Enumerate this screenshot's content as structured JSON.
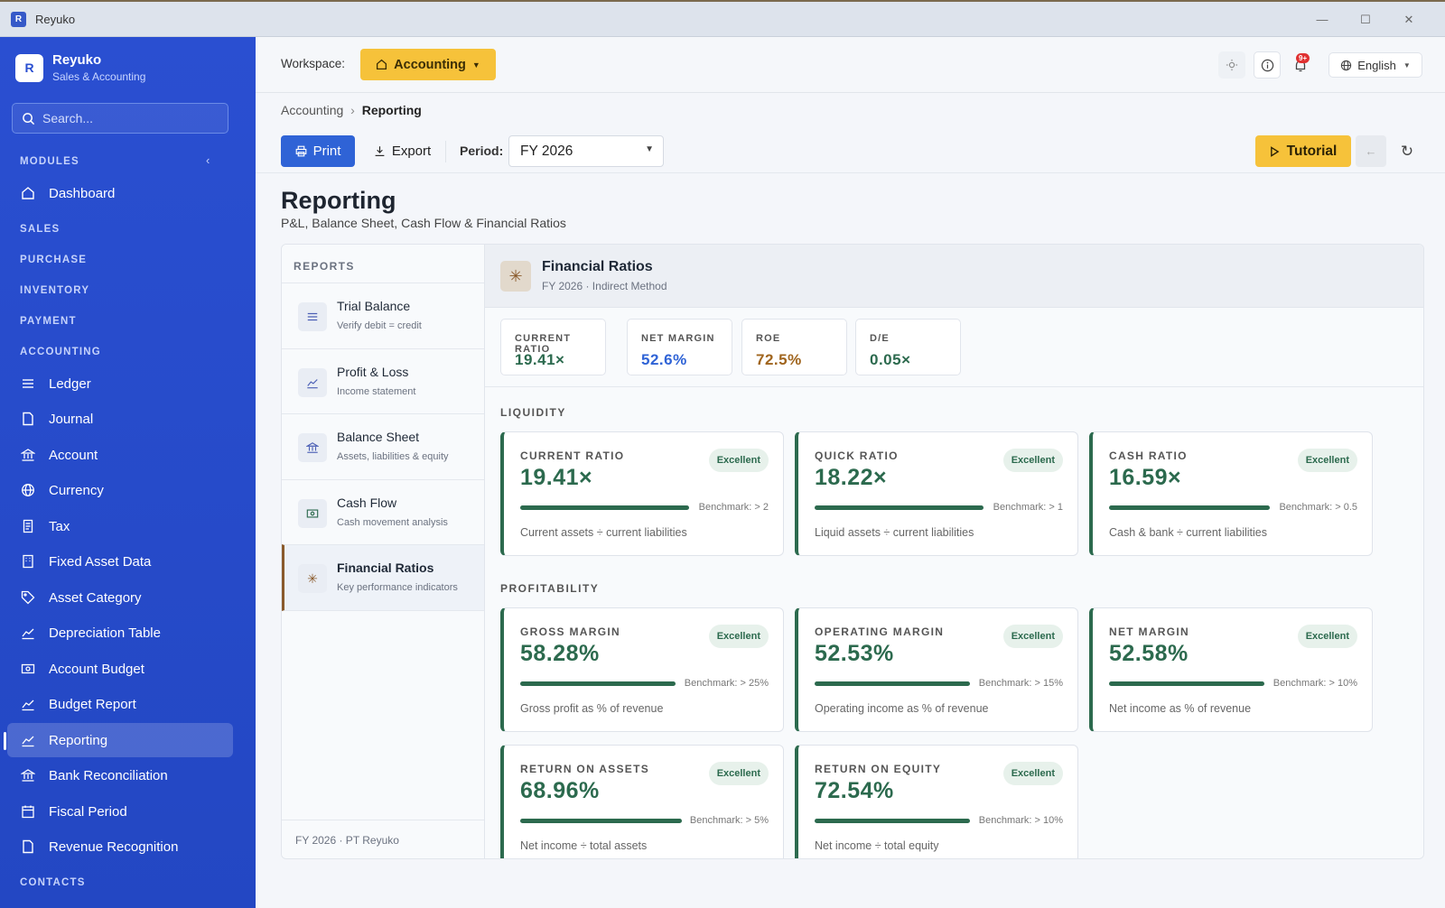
{
  "window": {
    "title": "Reyuko",
    "logo_letter": "R",
    "minimize": "—",
    "maximize": "☐",
    "close": "✕"
  },
  "brand": {
    "letter": "R",
    "name": "Reyuko",
    "subtitle": "Sales & Accounting"
  },
  "search": {
    "placeholder": "Search..."
  },
  "sidebar": {
    "modules_label": "MODULES",
    "dashboard": "Dashboard",
    "sections": [
      "SALES",
      "PURCHASE",
      "INVENTORY",
      "PAYMENT",
      "ACCOUNTING"
    ],
    "items": [
      "Ledger",
      "Journal",
      "Account",
      "Currency",
      "Tax",
      "Fixed Asset Data",
      "Asset Category",
      "Depreciation Table",
      "Account Budget",
      "Budget Report",
      "Reporting",
      "Bank Reconciliation",
      "Fiscal Period",
      "Revenue Recognition"
    ],
    "contacts_label": "CONTACTS",
    "active_item": "Reporting"
  },
  "topbar": {
    "workspace_label": "Workspace:",
    "workspace": "Accounting",
    "notification_badge": "9+",
    "language": "English"
  },
  "breadcrumb": {
    "parent": "Accounting",
    "current": "Reporting"
  },
  "toolbar": {
    "print": "Print",
    "export": "Export",
    "period_label": "Period:",
    "period": "FY 2026",
    "tutorial": "Tutorial"
  },
  "page": {
    "title": "Reporting",
    "subtitle": "P&L, Balance Sheet, Cash Flow & Financial Ratios"
  },
  "reports": {
    "heading": "REPORTS",
    "items": [
      {
        "title": "Trial Balance",
        "subtitle": "Verify debit = credit",
        "icon": "list-icon"
      },
      {
        "title": "Profit & Loss",
        "subtitle": "Income statement",
        "icon": "chart-line-icon"
      },
      {
        "title": "Balance Sheet",
        "subtitle": "Assets, liabilities & equity",
        "icon": "bank-icon"
      },
      {
        "title": "Cash Flow",
        "subtitle": "Cash movement analysis",
        "icon": "cash-icon"
      },
      {
        "title": "Financial Ratios",
        "subtitle": "Key performance indicators",
        "icon": "asterisk-icon"
      }
    ],
    "active": "Financial Ratios",
    "footer": "FY 2026 · PT Reyuko"
  },
  "content": {
    "title": "Financial Ratios",
    "subtitle": "FY 2026 · Indirect Method",
    "kpis": [
      {
        "label": "CURRENT RATIO",
        "value": "19.41×",
        "color": "#2c6a4e"
      },
      {
        "label": "NET MARGIN",
        "value": "52.6%",
        "color": "#2f63d6"
      },
      {
        "label": "ROE",
        "value": "72.5%",
        "color": "#a0651e"
      },
      {
        "label": "D/E",
        "value": "0.05×",
        "color": "#2c6a4e"
      }
    ],
    "liquidity": {
      "heading": "LIQUIDITY",
      "cards": [
        {
          "label": "CURRENT RATIO",
          "value": "19.41×",
          "badge": "Excellent",
          "benchmark": "Benchmark: > 2",
          "desc": "Current assets ÷ current liabilities"
        },
        {
          "label": "QUICK RATIO",
          "value": "18.22×",
          "badge": "Excellent",
          "benchmark": "Benchmark: > 1",
          "desc": "Liquid assets ÷ current liabilities"
        },
        {
          "label": "CASH RATIO",
          "value": "16.59×",
          "badge": "Excellent",
          "benchmark": "Benchmark: > 0.5",
          "desc": "Cash & bank ÷ current liabilities"
        }
      ]
    },
    "profitability": {
      "heading": "PROFITABILITY",
      "cards": [
        {
          "label": "GROSS MARGIN",
          "value": "58.28%",
          "badge": "Excellent",
          "benchmark": "Benchmark: > 25%",
          "desc": "Gross profit as % of revenue"
        },
        {
          "label": "OPERATING MARGIN",
          "value": "52.53%",
          "badge": "Excellent",
          "benchmark": "Benchmark: > 15%",
          "desc": "Operating income as % of revenue"
        },
        {
          "label": "NET MARGIN",
          "value": "52.58%",
          "badge": "Excellent",
          "benchmark": "Benchmark: > 10%",
          "desc": "Net income as % of revenue"
        },
        {
          "label": "RETURN ON ASSETS",
          "value": "68.96%",
          "badge": "Excellent",
          "benchmark": "Benchmark: > 5%",
          "desc": "Net income ÷ total assets"
        },
        {
          "label": "RETURN ON EQUITY",
          "value": "72.54%",
          "badge": "Excellent",
          "benchmark": "Benchmark: > 10%",
          "desc": "Net income ÷ total equity"
        }
      ]
    }
  },
  "colors": {
    "sidebar": "#2a4fd1",
    "accent": "#f6c23a",
    "primary": "#2f63d6",
    "success": "#2c6a4e",
    "warning": "#a0651e"
  }
}
